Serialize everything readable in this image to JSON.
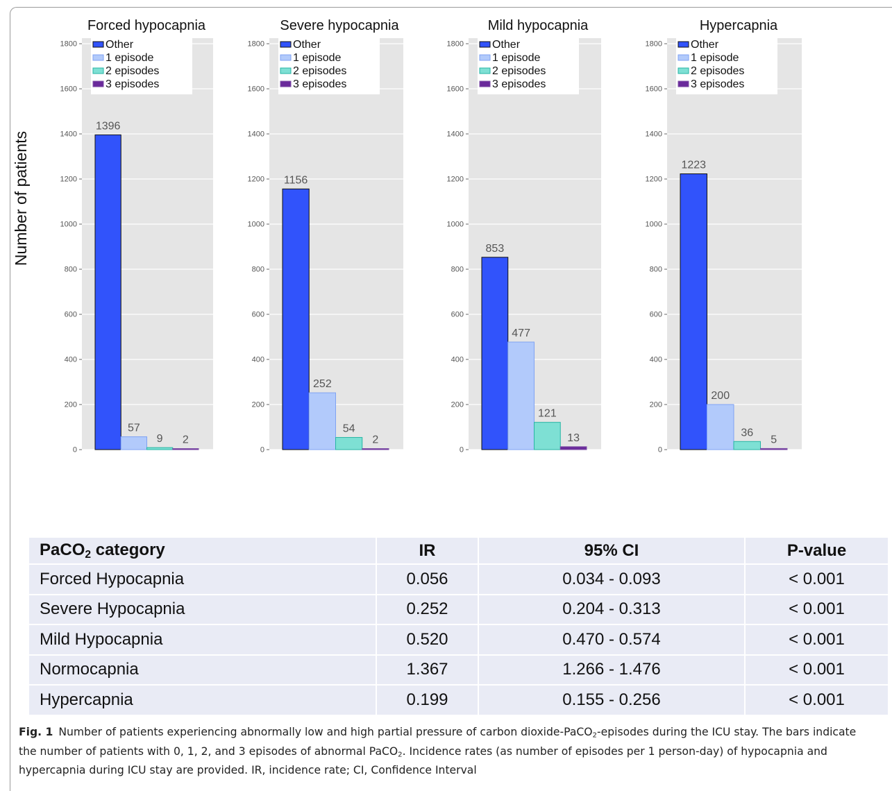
{
  "y_axis_label": "Number of patients",
  "legend_entries": [
    "Other",
    "1 episode",
    "2 episodes",
    "3 episodes"
  ],
  "series_colors": {
    "Other": "#3153fb",
    "1 episode": "#b2cafb",
    "2 episodes": "#7ee0d4",
    "3 episodes": "#6a2a9b"
  },
  "chart_data": [
    {
      "type": "bar",
      "title": "Forced hypocapnia",
      "categories": [
        "Other",
        "1 episode",
        "2 episodes",
        "3 episodes"
      ],
      "values": [
        1396,
        57,
        9,
        2
      ],
      "ylim": [
        0,
        1800
      ],
      "yticks": [
        0,
        200,
        400,
        600,
        800,
        1000,
        1200,
        1400,
        1600,
        1800
      ],
      "grid": true,
      "legend_position": "top"
    },
    {
      "type": "bar",
      "title": "Severe hypocapnia",
      "categories": [
        "Other",
        "1 episode",
        "2 episodes",
        "3 episodes"
      ],
      "values": [
        1156,
        252,
        54,
        2
      ],
      "ylim": [
        0,
        1800
      ],
      "yticks": [
        0,
        200,
        400,
        600,
        800,
        1000,
        1200,
        1400,
        1600,
        1800
      ],
      "grid": true,
      "legend_position": "top"
    },
    {
      "type": "bar",
      "title": "Mild hypocapnia",
      "categories": [
        "Other",
        "1 episode",
        "2 episodes",
        "3 episodes"
      ],
      "values": [
        853,
        477,
        121,
        13
      ],
      "ylim": [
        0,
        1800
      ],
      "yticks": [
        0,
        200,
        400,
        600,
        800,
        1000,
        1200,
        1400,
        1600,
        1800
      ],
      "grid": true,
      "legend_position": "top"
    },
    {
      "type": "bar",
      "title": "Hypercapnia",
      "categories": [
        "Other",
        "1 episode",
        "2 episodes",
        "3 episodes"
      ],
      "values": [
        1223,
        200,
        36,
        5
      ],
      "ylim": [
        0,
        1800
      ],
      "yticks": [
        0,
        200,
        400,
        600,
        800,
        1000,
        1200,
        1400,
        1600,
        1800
      ],
      "grid": true,
      "legend_position": "top"
    }
  ],
  "table": {
    "headers": [
      "PaCO2 category",
      "IR",
      "95% CI",
      "P-value"
    ],
    "rows": [
      [
        "Forced Hypocapnia",
        "0.056",
        "0.034 - 0.093",
        "< 0.001"
      ],
      [
        "Severe Hypocapnia",
        "0.252",
        "0.204 - 0.313",
        "< 0.001"
      ],
      [
        "Mild Hypocapnia",
        "0.520",
        "0.470 - 0.574",
        "< 0.001"
      ],
      [
        "Normocapnia",
        "1.367",
        "1.266 - 1.476",
        "< 0.001"
      ],
      [
        "Hypercapnia",
        "0.199",
        "0.155 - 0.256",
        "< 0.001"
      ]
    ]
  },
  "caption": {
    "label": "Fig. 1",
    "text": "Number of patients experiencing abnormally low and high partial pressure of carbon dioxide-PaCO2-episodes during the ICU stay. The bars indicate the number of patients with 0, 1, 2, and 3 episodes of abnormal PaCO2. Incidence rates (as number of episodes per 1 person-day) of hypocapnia and hypercapnia during ICU stay are provided. IR, incidence rate; CI, Confidence Interval"
  }
}
